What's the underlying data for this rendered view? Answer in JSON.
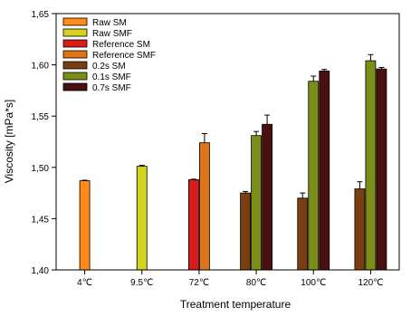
{
  "chart_data": {
    "type": "bar",
    "title": "",
    "xlabel": "Treatment temperature",
    "ylabel": "Viscosity [mPa*s]",
    "ylim": [
      1.4,
      1.65
    ],
    "yticks": [
      "1,40",
      "1,45",
      "1,50",
      "1,55",
      "1,60",
      "1,65"
    ],
    "categories": [
      "4℃",
      "9.5℃",
      "72℃",
      "80℃",
      "100℃",
      "120℃"
    ],
    "legend_position": "top-left",
    "series": [
      {
        "name": "Raw SM",
        "color": "#ff8c1a",
        "values": [
          1.487,
          null,
          null,
          null,
          null,
          null
        ],
        "errors": [
          0.0005,
          null,
          null,
          null,
          null,
          null
        ]
      },
      {
        "name": "Raw SMF",
        "color": "#d4d41f",
        "values": [
          null,
          1.501,
          null,
          null,
          null,
          null
        ],
        "errors": [
          null,
          0.001,
          null,
          null,
          null,
          null
        ]
      },
      {
        "name": "Reference SM",
        "color": "#d81c1c",
        "values": [
          null,
          null,
          1.488,
          null,
          null,
          null
        ],
        "errors": [
          null,
          null,
          0.0005,
          null,
          null,
          null
        ]
      },
      {
        "name": "Reference SMF",
        "color": "#e07418",
        "values": [
          null,
          null,
          1.524,
          null,
          null,
          null
        ],
        "errors": [
          null,
          null,
          0.009,
          null,
          null,
          null
        ]
      },
      {
        "name": "0.2s SM",
        "color": "#7a3e10",
        "values": [
          null,
          null,
          null,
          1.475,
          1.47,
          1.479
        ],
        "errors": [
          null,
          null,
          null,
          0.0015,
          0.005,
          0.007
        ]
      },
      {
        "name": "0.1s SMF",
        "color": "#7c8d1a",
        "values": [
          null,
          null,
          null,
          1.531,
          1.584,
          1.604
        ],
        "errors": [
          null,
          null,
          null,
          0.004,
          0.005,
          0.006
        ]
      },
      {
        "name": "0.7s SMF",
        "color": "#4a0f0f",
        "values": [
          null,
          null,
          null,
          1.542,
          1.594,
          1.596
        ],
        "errors": [
          null,
          null,
          null,
          0.009,
          0.0015,
          0.0015
        ]
      }
    ]
  }
}
